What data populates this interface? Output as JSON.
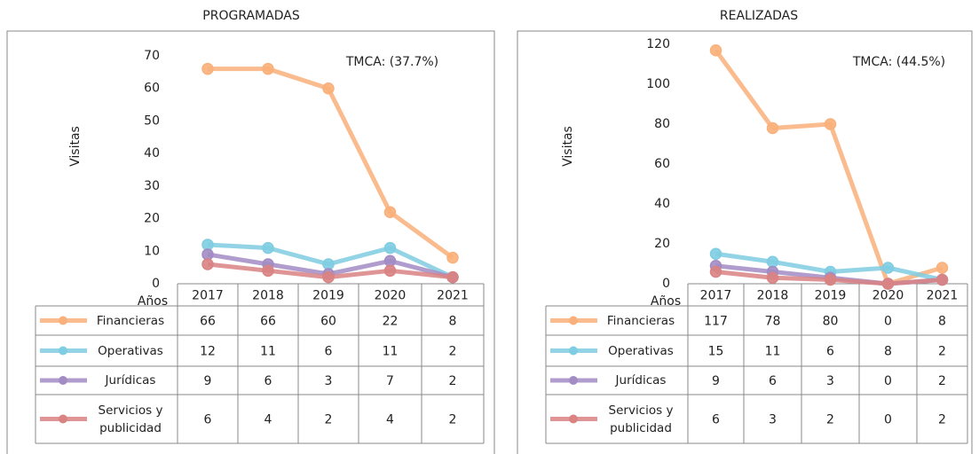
{
  "chart_data": [
    {
      "type": "line",
      "title": "PROGRAMADAS",
      "y_label": "Visitas",
      "x_label": "Años",
      "annotation": "TMCA: (37.7%)",
      "categories": [
        "2017",
        "2018",
        "2019",
        "2020",
        "2021"
      ],
      "ylim": [
        0,
        70
      ],
      "yticks": [
        0,
        10,
        20,
        30,
        40,
        50,
        60,
        70
      ],
      "series": [
        {
          "name": "Financieras",
          "color": "#f9b07a",
          "values": [
            66,
            66,
            60,
            22,
            8
          ]
        },
        {
          "name": "Operativas",
          "color": "#7fcde2",
          "values": [
            12,
            11,
            6,
            11,
            2
          ]
        },
        {
          "name": "Jurídicas",
          "color": "#a28cc4",
          "values": [
            9,
            6,
            3,
            7,
            2
          ]
        },
        {
          "name": "Servicios y publicidad",
          "color": "#d98383",
          "values": [
            6,
            4,
            2,
            4,
            2
          ]
        }
      ]
    },
    {
      "type": "line",
      "title": "REALIZADAS",
      "y_label": "Visitas",
      "x_label": "Años",
      "annotation": "TMCA: (44.5%)",
      "categories": [
        "2017",
        "2018",
        "2019",
        "2020",
        "2021"
      ],
      "ylim": [
        0,
        120
      ],
      "yticks": [
        0,
        20,
        40,
        60,
        80,
        100,
        120
      ],
      "series": [
        {
          "name": "Financieras",
          "color": "#f9b07a",
          "values": [
            117,
            78,
            80,
            0,
            8
          ]
        },
        {
          "name": "Operativas",
          "color": "#7fcde2",
          "values": [
            15,
            11,
            6,
            8,
            2
          ]
        },
        {
          "name": "Jurídicas",
          "color": "#a28cc4",
          "values": [
            9,
            6,
            3,
            0,
            2
          ]
        },
        {
          "name": "Servicios y publicidad",
          "color": "#d98383",
          "values": [
            6,
            3,
            2,
            0,
            2
          ]
        }
      ]
    }
  ]
}
